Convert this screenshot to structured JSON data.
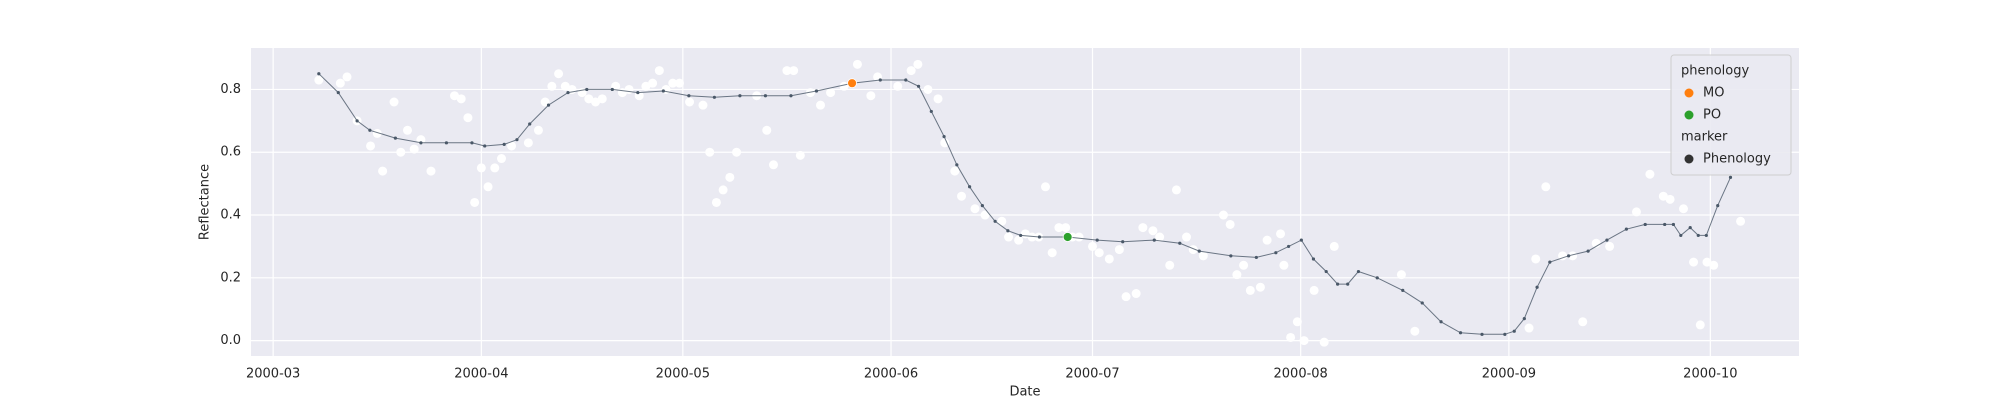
{
  "chart_data": {
    "type": "scatter",
    "x_label": "Date",
    "y_label": "Reflectance",
    "xlim": [
      -3.3,
      227.2
    ],
    "xticks": [
      {
        "value": 0,
        "label": "2000-03"
      },
      {
        "value": 31,
        "label": "2000-04"
      },
      {
        "value": 61,
        "label": "2000-05"
      },
      {
        "value": 92,
        "label": "2000-06"
      },
      {
        "value": 122,
        "label": "2000-07"
      },
      {
        "value": 153,
        "label": "2000-08"
      },
      {
        "value": 184,
        "label": "2000-09"
      },
      {
        "value": 214,
        "label": "2000-10"
      }
    ],
    "ylim": [
      -0.049,
      0.932
    ],
    "yticks": [
      {
        "value": 0,
        "label": "0.0"
      },
      {
        "value": 0.2,
        "label": "0.2"
      },
      {
        "value": 0.4,
        "label": "0.4"
      },
      {
        "value": 0.6,
        "label": "0.6"
      },
      {
        "value": 0.8,
        "label": "0.8"
      }
    ],
    "grid": true,
    "series": [
      {
        "type": "points",
        "color": "#ffffff",
        "x": [
          6.8,
          10,
          11,
          12.5,
          14.5,
          15.5,
          16.3,
          18,
          19,
          20,
          21,
          22,
          23.5,
          27,
          28,
          29,
          30,
          31,
          32,
          33,
          34,
          35.5,
          38,
          39.5,
          40.5,
          41.5,
          42.5,
          43.5,
          44.5,
          46,
          47,
          48,
          49,
          51,
          52,
          53,
          54.5,
          55.5,
          56.5,
          57.5,
          58.5,
          59.5,
          60.5,
          62,
          64,
          65,
          66,
          67,
          68,
          69,
          72,
          73.5,
          74.5,
          76.5,
          77.5,
          78.5,
          80,
          81.5,
          83,
          85,
          87,
          89,
          90,
          93,
          95,
          96,
          97.5,
          99,
          100,
          101.5,
          102.5,
          104.5,
          106,
          108.5,
          109.5,
          111,
          112,
          113,
          114,
          115,
          116,
          117,
          118,
          119,
          120,
          122,
          123,
          124.5,
          126,
          127,
          128.5,
          129.5,
          131,
          132,
          133.5,
          134.5,
          136,
          137,
          138.5,
          141.5,
          142.5,
          143.5,
          144.5,
          145.5,
          147,
          148,
          150,
          150.5,
          151.5,
          152.5,
          153.5,
          155,
          156.5,
          158,
          168,
          170,
          187,
          188,
          189.5,
          192,
          193.5,
          195,
          197,
          199,
          203,
          205,
          207,
          208,
          210,
          211.5,
          212.5,
          213.5,
          214.5,
          218.5
        ],
        "values": [
          0.83,
          0.82,
          0.84,
          0.7,
          0.62,
          0.66,
          0.54,
          0.76,
          0.6,
          0.67,
          0.61,
          0.64,
          0.54,
          0.78,
          0.77,
          0.71,
          0.44,
          0.55,
          0.49,
          0.55,
          0.58,
          0.62,
          0.63,
          0.67,
          0.76,
          0.81,
          0.85,
          0.81,
          0.8,
          0.79,
          0.77,
          0.76,
          0.77,
          0.81,
          0.79,
          0.8,
          0.78,
          0.81,
          0.82,
          0.86,
          0.8,
          0.82,
          0.82,
          0.76,
          0.75,
          0.6,
          0.44,
          0.48,
          0.52,
          0.6,
          0.78,
          0.67,
          0.56,
          0.86,
          0.86,
          0.59,
          0.79,
          0.75,
          0.79,
          0.81,
          0.88,
          0.78,
          0.84,
          0.81,
          0.86,
          0.88,
          0.8,
          0.77,
          0.63,
          0.54,
          0.46,
          0.42,
          0.4,
          0.38,
          0.33,
          0.32,
          0.34,
          0.33,
          0.33,
          0.49,
          0.28,
          0.36,
          0.36,
          0.33,
          0.33,
          0.3,
          0.28,
          0.26,
          0.29,
          0.14,
          0.15,
          0.36,
          0.35,
          0.33,
          0.24,
          0.48,
          0.33,
          0.29,
          0.27,
          0.4,
          0.37,
          0.21,
          0.24,
          0.16,
          0.17,
          0.32,
          0.34,
          0.24,
          0.01,
          0.06,
          0.0,
          0.16,
          -0.005,
          0.3,
          0.21,
          0.03,
          0.04,
          0.26,
          0.49,
          0.27,
          0.27,
          0.06,
          0.31,
          0.3,
          0.41,
          0.53,
          0.46,
          0.45,
          0.42,
          0.25,
          0.05,
          0.25,
          0.24,
          0.38
        ]
      },
      {
        "type": "line",
        "color": "#4a5868",
        "x": [
          6.8,
          9.7,
          12.5,
          14.4,
          18.2,
          22,
          25.8,
          29.6,
          31.5,
          34.4,
          36.3,
          38.2,
          41,
          43.9,
          46.7,
          50.5,
          54.3,
          58.1,
          61.9,
          65.7,
          69.5,
          73.3,
          77.1,
          80.9,
          86.2,
          90.4,
          94.2,
          96.1,
          98,
          99.9,
          101.8,
          103.7,
          105.6,
          107.5,
          109.4,
          111.3,
          114.1,
          118.3,
          122.7,
          126.5,
          131.2,
          135,
          137.9,
          142.6,
          146.4,
          149.3,
          151.2,
          153.1,
          154.9,
          156.8,
          158.5,
          160,
          161.6,
          164.4,
          168.2,
          171.1,
          173.9,
          176.8,
          180,
          183.4,
          184.8,
          186.3,
          188.2,
          190.1,
          192.9,
          195.8,
          198.6,
          201.5,
          204.3,
          207.2,
          208.5,
          209.6,
          211,
          212.2,
          213.4,
          215.1,
          217
        ],
        "values": [
          0.85,
          0.79,
          0.7,
          0.67,
          0.645,
          0.63,
          0.63,
          0.63,
          0.62,
          0.625,
          0.64,
          0.69,
          0.75,
          0.79,
          0.8,
          0.8,
          0.79,
          0.795,
          0.78,
          0.775,
          0.78,
          0.78,
          0.78,
          0.795,
          0.82,
          0.83,
          0.83,
          0.81,
          0.73,
          0.65,
          0.56,
          0.49,
          0.43,
          0.38,
          0.35,
          0.335,
          0.33,
          0.33,
          0.32,
          0.315,
          0.32,
          0.31,
          0.285,
          0.27,
          0.265,
          0.28,
          0.3,
          0.32,
          0.26,
          0.22,
          0.18,
          0.18,
          0.22,
          0.2,
          0.16,
          0.12,
          0.06,
          0.025,
          0.02,
          0.02,
          0.03,
          0.07,
          0.17,
          0.25,
          0.27,
          0.285,
          0.32,
          0.355,
          0.37,
          0.37,
          0.37,
          0.335,
          0.36,
          0.335,
          0.335,
          0.43,
          0.52
        ]
      },
      {
        "type": "marker",
        "name": "MO",
        "color": "#ff7f0e",
        "x": [
          86.2
        ],
        "values": [
          0.82
        ]
      },
      {
        "type": "marker",
        "name": "PO",
        "color": "#2ca02c",
        "x": [
          118.3
        ],
        "values": [
          0.33
        ]
      }
    ],
    "legend": {
      "position": "upper right",
      "title": "phenology",
      "marker_title": "marker",
      "marker_entry": "Phenology",
      "marker_color": "#333333"
    }
  }
}
